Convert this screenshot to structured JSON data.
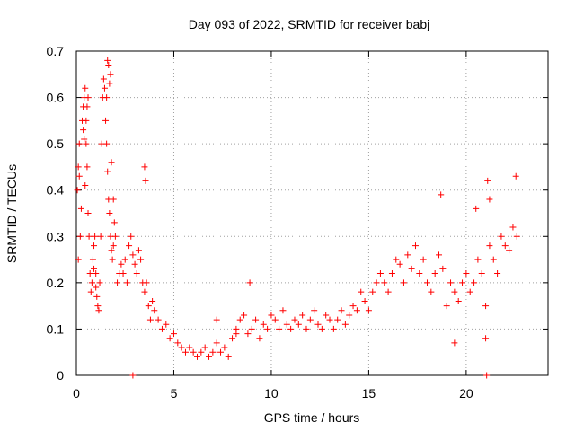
{
  "chart_data": {
    "type": "scatter",
    "title": "Day 093 of 2022, SRMTID for receiver babj",
    "xlabel": "GPS time / hours",
    "ylabel": "SRMTID / TECUs",
    "xlim": [
      0,
      24.2
    ],
    "ylim": [
      0,
      0.7
    ],
    "xticks": [
      0,
      5,
      10,
      15,
      20
    ],
    "yticks": [
      0,
      0.1,
      0.2,
      0.3,
      0.4,
      0.5,
      0.6,
      0.7
    ],
    "xtick_labels": [
      "0",
      "5",
      "10",
      "15",
      "20"
    ],
    "ytick_labels": [
      "0",
      "0.1",
      "0.2",
      "0.3",
      "0.4",
      "0.5",
      "0.6",
      "0.7"
    ],
    "grid": true,
    "marker": "+",
    "marker_color": "#ff0000",
    "series": [
      {
        "name": "SRMTID",
        "x": [
          0.05,
          0.1,
          0.15,
          0.2,
          0.25,
          0.3,
          0.35,
          0.4,
          0.45,
          0.5,
          0.55,
          0.6,
          0.65,
          0.7,
          0.75,
          0.8,
          0.85,
          0.9,
          0.95,
          1.0,
          1.05,
          1.1,
          1.15,
          1.2,
          1.25,
          1.3,
          1.35,
          1.4,
          1.45,
          1.5,
          1.55,
          1.6,
          1.65,
          1.7,
          1.75,
          1.8,
          1.85,
          1.9,
          1.95,
          2.0,
          2.1,
          2.2,
          2.3,
          2.4,
          2.5,
          2.6,
          2.7,
          2.8,
          2.9,
          3.0,
          3.1,
          3.2,
          3.3,
          3.4,
          3.5,
          3.6,
          3.7,
          3.8,
          3.9,
          4.0,
          4.2,
          4.4,
          4.6,
          4.8,
          5.0,
          5.2,
          5.4,
          5.6,
          5.8,
          6.0,
          6.2,
          6.4,
          6.6,
          6.8,
          7.0,
          7.2,
          7.4,
          7.6,
          7.8,
          8.0,
          8.2,
          8.4,
          8.6,
          8.8,
          9.0,
          9.2,
          9.4,
          9.6,
          9.8,
          10.0,
          10.2,
          10.4,
          10.6,
          10.8,
          11.0,
          11.2,
          11.4,
          11.6,
          11.8,
          12.0,
          12.2,
          12.4,
          12.6,
          12.8,
          13.0,
          13.2,
          13.4,
          13.6,
          13.8,
          14.0,
          14.2,
          14.4,
          14.6,
          14.8,
          15.0,
          15.2,
          15.4,
          15.6,
          15.8,
          16.0,
          16.2,
          16.4,
          16.6,
          16.8,
          17.0,
          17.2,
          17.4,
          17.6,
          17.8,
          18.0,
          18.2,
          18.4,
          18.6,
          18.8,
          19.0,
          19.2,
          19.4,
          19.6,
          19.8,
          20.0,
          20.2,
          20.4,
          20.6,
          20.8,
          21.0,
          21.2,
          21.4,
          21.6,
          21.8,
          22.0,
          22.2,
          22.4,
          22.6,
          2.9,
          21.05,
          0.1,
          0.15,
          0.35,
          0.4,
          0.45,
          1.6,
          1.65,
          1.7,
          1.75,
          3.5,
          3.55,
          0.5,
          0.55,
          0.6,
          1.55,
          1.8,
          21.1,
          21.2,
          22.55,
          18.7,
          20.5,
          1.9,
          0.9,
          1.0,
          7.2,
          8.2,
          8.9,
          19.4,
          21.0
        ],
        "y": [
          0.4,
          0.25,
          0.5,
          0.3,
          0.36,
          0.55,
          0.58,
          0.6,
          0.62,
          0.55,
          0.45,
          0.35,
          0.3,
          0.22,
          0.18,
          0.2,
          0.25,
          0.28,
          0.3,
          0.22,
          0.17,
          0.15,
          0.14,
          0.2,
          0.3,
          0.5,
          0.6,
          0.64,
          0.62,
          0.55,
          0.5,
          0.44,
          0.38,
          0.35,
          0.3,
          0.27,
          0.25,
          0.28,
          0.33,
          0.3,
          0.2,
          0.22,
          0.24,
          0.22,
          0.25,
          0.2,
          0.28,
          0.3,
          0.26,
          0.24,
          0.22,
          0.27,
          0.25,
          0.2,
          0.18,
          0.2,
          0.15,
          0.12,
          0.16,
          0.14,
          0.12,
          0.1,
          0.11,
          0.08,
          0.09,
          0.07,
          0.06,
          0.05,
          0.06,
          0.05,
          0.04,
          0.05,
          0.06,
          0.04,
          0.05,
          0.07,
          0.05,
          0.06,
          0.04,
          0.08,
          0.1,
          0.12,
          0.13,
          0.09,
          0.1,
          0.12,
          0.08,
          0.11,
          0.1,
          0.13,
          0.12,
          0.1,
          0.14,
          0.11,
          0.1,
          0.12,
          0.11,
          0.13,
          0.1,
          0.12,
          0.14,
          0.11,
          0.1,
          0.13,
          0.12,
          0.1,
          0.12,
          0.14,
          0.11,
          0.13,
          0.15,
          0.14,
          0.18,
          0.16,
          0.14,
          0.18,
          0.2,
          0.22,
          0.2,
          0.18,
          0.22,
          0.25,
          0.24,
          0.2,
          0.26,
          0.23,
          0.28,
          0.22,
          0.25,
          0.2,
          0.18,
          0.22,
          0.26,
          0.23,
          0.15,
          0.2,
          0.18,
          0.16,
          0.2,
          0.22,
          0.18,
          0.2,
          0.25,
          0.22,
          0.15,
          0.28,
          0.25,
          0.22,
          0.3,
          0.28,
          0.27,
          0.32,
          0.3,
          0.0,
          0.0,
          0.45,
          0.43,
          0.53,
          0.51,
          0.41,
          0.68,
          0.67,
          0.63,
          0.65,
          0.45,
          0.42,
          0.5,
          0.58,
          0.6,
          0.6,
          0.46,
          0.42,
          0.38,
          0.43,
          0.39,
          0.36,
          0.38,
          0.23,
          0.19,
          0.12,
          0.09,
          0.2,
          0.07,
          0.08
        ]
      }
    ]
  }
}
